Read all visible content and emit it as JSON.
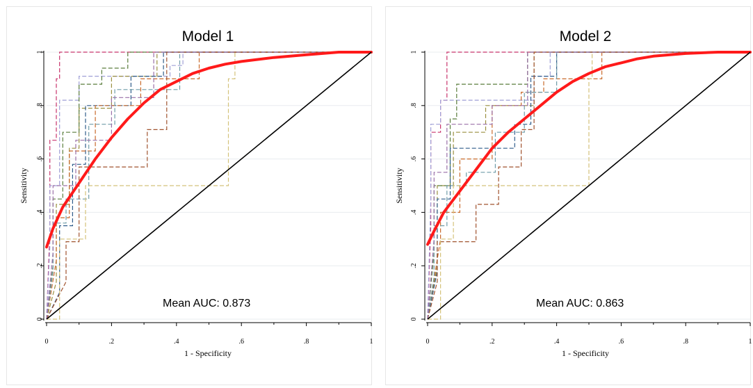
{
  "chart_data": [
    {
      "type": "line",
      "title": "Model 1",
      "xlabel": "1 - Specificity",
      "ylabel": "Sensitivity",
      "xlim": [
        0,
        1
      ],
      "ylim": [
        0,
        1
      ],
      "xticks": [
        "0",
        ".2",
        ".4",
        ".6",
        ".8",
        "1"
      ],
      "yticks": [
        "0",
        ".2",
        ".4",
        ".6",
        ".8",
        "1"
      ],
      "grid": true,
      "annotation": "Mean AUC: 0.873",
      "series": [
        {
          "style": "dashed",
          "color": "#c8336b",
          "x": [
            0,
            0.01,
            0.01,
            0.03,
            0.03,
            0.04,
            0.04,
            1
          ],
          "y": [
            0,
            0.33,
            0.67,
            0.67,
            0.9,
            0.9,
            1,
            1
          ]
        },
        {
          "style": "dashed",
          "color": "#9f9fd6",
          "x": [
            0,
            0.01,
            0.01,
            0.04,
            0.04,
            0.1,
            0.1,
            0.38,
            0.38,
            0.42,
            0.42,
            1
          ],
          "y": [
            0,
            0.27,
            0.5,
            0.5,
            0.82,
            0.82,
            0.91,
            0.91,
            0.95,
            0.95,
            1,
            1
          ]
        },
        {
          "style": "dashed",
          "color": "#9a8f3f",
          "x": [
            0,
            0.03,
            0.03,
            0.07,
            0.07,
            0.1,
            0.1,
            0.2,
            0.2,
            0.34,
            0.34,
            1
          ],
          "y": [
            0,
            0.14,
            0.43,
            0.43,
            0.64,
            0.64,
            0.79,
            0.79,
            0.91,
            0.91,
            1,
            1
          ]
        },
        {
          "style": "dashed",
          "color": "#5a7d3c",
          "x": [
            0,
            0.02,
            0.02,
            0.05,
            0.05,
            0.1,
            0.1,
            0.17,
            0.17,
            0.25,
            0.25,
            1
          ],
          "y": [
            0,
            0.2,
            0.45,
            0.45,
            0.7,
            0.7,
            0.88,
            0.88,
            0.94,
            0.94,
            1,
            1
          ]
        },
        {
          "style": "dashed",
          "color": "#2f5c8a",
          "x": [
            0,
            0.04,
            0.04,
            0.08,
            0.08,
            0.12,
            0.12,
            0.26,
            0.26,
            0.36,
            0.36,
            1
          ],
          "y": [
            0,
            0.1,
            0.35,
            0.35,
            0.58,
            0.58,
            0.8,
            0.8,
            0.91,
            0.91,
            1,
            1
          ]
        },
        {
          "style": "dashed",
          "color": "#c96a2b",
          "x": [
            0,
            0.03,
            0.03,
            0.07,
            0.07,
            0.15,
            0.15,
            0.29,
            0.29,
            0.47,
            0.47,
            1
          ],
          "y": [
            0,
            0.22,
            0.38,
            0.38,
            0.63,
            0.63,
            0.8,
            0.8,
            0.9,
            0.9,
            1,
            1
          ]
        },
        {
          "style": "dashed",
          "color": "#6f9ca8",
          "x": [
            0,
            0.02,
            0.02,
            0.06,
            0.06,
            0.13,
            0.13,
            0.21,
            0.21,
            0.41,
            0.41,
            1
          ],
          "y": [
            0,
            0.18,
            0.36,
            0.36,
            0.45,
            0.45,
            0.73,
            0.73,
            0.86,
            0.86,
            1,
            1
          ]
        },
        {
          "style": "dashed",
          "color": "#a0522d",
          "x": [
            0,
            0.06,
            0.06,
            0.1,
            0.1,
            0.17,
            0.17,
            0.25,
            0.25,
            0.31,
            0.31,
            0.37,
            0.37,
            1
          ],
          "y": [
            0,
            0.14,
            0.29,
            0.29,
            0.57,
            0.57,
            0.57,
            0.57,
            0.57,
            0.57,
            0.71,
            0.71,
            1,
            1
          ]
        },
        {
          "style": "dashed",
          "color": "#d4c27a",
          "x": [
            0,
            0.04,
            0.04,
            0.12,
            0.12,
            0.56,
            0.56,
            0.58,
            0.58,
            1
          ],
          "y": [
            0,
            0.0,
            0.3,
            0.3,
            0.5,
            0.5,
            0.9,
            0.9,
            1,
            1
          ]
        },
        {
          "style": "dashed",
          "color": "#9a6fa8",
          "x": [
            0,
            0.02,
            0.02,
            0.09,
            0.09,
            0.2,
            0.2,
            0.33,
            0.33,
            1
          ],
          "y": [
            0,
            0.25,
            0.5,
            0.5,
            0.67,
            0.67,
            0.83,
            0.83,
            1,
            1
          ]
        },
        {
          "style": "smooth",
          "color": "#ff1a1a",
          "x": [
            0,
            0.02,
            0.05,
            0.1,
            0.15,
            0.2,
            0.25,
            0.3,
            0.35,
            0.4,
            0.45,
            0.5,
            0.55,
            0.6,
            0.7,
            0.8,
            0.9,
            1
          ],
          "y": [
            0.27,
            0.34,
            0.42,
            0.51,
            0.6,
            0.68,
            0.75,
            0.81,
            0.86,
            0.89,
            0.92,
            0.94,
            0.955,
            0.965,
            0.98,
            0.99,
            1.0,
            1.0
          ]
        },
        {
          "style": "reference",
          "color": "#000000",
          "x": [
            0,
            1
          ],
          "y": [
            0,
            1
          ]
        }
      ]
    },
    {
      "type": "line",
      "title": "Model 2",
      "xlabel": "1 - Specificity",
      "ylabel": "Sensitivity",
      "xlim": [
        0,
        1
      ],
      "ylim": [
        0,
        1
      ],
      "xticks": [
        "0",
        ".2",
        ".4",
        ".6",
        ".8",
        "1"
      ],
      "yticks": [
        "0",
        ".2",
        ".4",
        ".6",
        ".8",
        "1"
      ],
      "grid": true,
      "annotation": "Mean AUC: 0.863",
      "series": [
        {
          "style": "dashed",
          "color": "#c8336b",
          "x": [
            0,
            0.01,
            0.01,
            0.04,
            0.04,
            0.06,
            0.06,
            1
          ],
          "y": [
            0,
            0.35,
            0.7,
            0.7,
            0.82,
            0.82,
            1,
            1
          ]
        },
        {
          "style": "dashed",
          "color": "#9f9fd6",
          "x": [
            0,
            0.01,
            0.01,
            0.04,
            0.04,
            0.2,
            0.2,
            0.28,
            0.28,
            0.33,
            0.33,
            0.38,
            0.38,
            1
          ],
          "y": [
            0,
            0.45,
            0.73,
            0.73,
            0.82,
            0.82,
            0.82,
            0.82,
            0.82,
            0.82,
            0.91,
            0.91,
            1,
            1
          ]
        },
        {
          "style": "dashed",
          "color": "#9a8f3f",
          "x": [
            0,
            0.03,
            0.03,
            0.08,
            0.08,
            0.18,
            0.18,
            0.33,
            0.33,
            1
          ],
          "y": [
            0,
            0.2,
            0.5,
            0.5,
            0.7,
            0.7,
            0.8,
            0.8,
            1,
            1
          ]
        },
        {
          "style": "dashed",
          "color": "#5a7d3c",
          "x": [
            0,
            0.02,
            0.02,
            0.07,
            0.07,
            0.09,
            0.09,
            0.25,
            0.25,
            0.31,
            0.31,
            1
          ],
          "y": [
            0,
            0.25,
            0.5,
            0.5,
            0.75,
            0.75,
            0.88,
            0.88,
            0.88,
            0.88,
            1,
            1
          ]
        },
        {
          "style": "dashed",
          "color": "#2f5c8a",
          "x": [
            0,
            0.03,
            0.03,
            0.07,
            0.07,
            0.13,
            0.13,
            0.27,
            0.27,
            0.32,
            0.32,
            0.4,
            0.4,
            1
          ],
          "y": [
            0,
            0.18,
            0.45,
            0.45,
            0.64,
            0.64,
            0.64,
            0.64,
            0.73,
            0.73,
            0.91,
            0.91,
            1,
            1
          ]
        },
        {
          "style": "dashed",
          "color": "#c96a2b",
          "x": [
            0,
            0.04,
            0.04,
            0.1,
            0.1,
            0.2,
            0.2,
            0.29,
            0.29,
            0.36,
            0.36,
            0.54,
            0.54,
            1
          ],
          "y": [
            0,
            0.3,
            0.4,
            0.4,
            0.6,
            0.6,
            0.8,
            0.8,
            0.85,
            0.85,
            0.9,
            0.9,
            1,
            1
          ]
        },
        {
          "style": "dashed",
          "color": "#6f9ca8",
          "x": [
            0,
            0.02,
            0.02,
            0.06,
            0.06,
            0.12,
            0.12,
            0.21,
            0.21,
            0.3,
            0.3,
            0.4,
            0.4,
            1
          ],
          "y": [
            0,
            0.16,
            0.35,
            0.35,
            0.5,
            0.5,
            0.55,
            0.55,
            0.7,
            0.7,
            0.85,
            0.85,
            1,
            1
          ]
        },
        {
          "style": "dashed",
          "color": "#a0522d",
          "x": [
            0,
            0.03,
            0.03,
            0.08,
            0.08,
            0.15,
            0.15,
            0.22,
            0.22,
            0.29,
            0.29,
            0.33,
            0.33,
            1
          ],
          "y": [
            0,
            0.14,
            0.29,
            0.29,
            0.29,
            0.29,
            0.43,
            0.43,
            0.57,
            0.57,
            0.71,
            0.71,
            1,
            1
          ]
        },
        {
          "style": "dashed",
          "color": "#d4c27a",
          "x": [
            0,
            0.04,
            0.04,
            0.08,
            0.08,
            0.5,
            0.5,
            0.51,
            0.51,
            1
          ],
          "y": [
            0,
            0.0,
            0.3,
            0.3,
            0.5,
            0.5,
            0.9,
            0.9,
            1,
            1
          ]
        },
        {
          "style": "dashed",
          "color": "#9a6fa8",
          "x": [
            0,
            0.02,
            0.02,
            0.06,
            0.06,
            0.2,
            0.2,
            0.31,
            0.31,
            1
          ],
          "y": [
            0,
            0.3,
            0.55,
            0.55,
            0.73,
            0.73,
            0.8,
            0.8,
            1,
            1
          ]
        },
        {
          "style": "smooth",
          "color": "#ff1a1a",
          "x": [
            0,
            0.02,
            0.05,
            0.1,
            0.15,
            0.2,
            0.25,
            0.3,
            0.35,
            0.4,
            0.45,
            0.5,
            0.55,
            0.6,
            0.65,
            0.7,
            0.8,
            0.9,
            1
          ],
          "y": [
            0.28,
            0.33,
            0.4,
            0.48,
            0.56,
            0.64,
            0.7,
            0.75,
            0.8,
            0.85,
            0.89,
            0.92,
            0.945,
            0.96,
            0.975,
            0.985,
            0.995,
            1.0,
            1.0
          ]
        },
        {
          "style": "reference",
          "color": "#000000",
          "x": [
            0,
            1
          ],
          "y": [
            0,
            1
          ]
        }
      ]
    }
  ]
}
